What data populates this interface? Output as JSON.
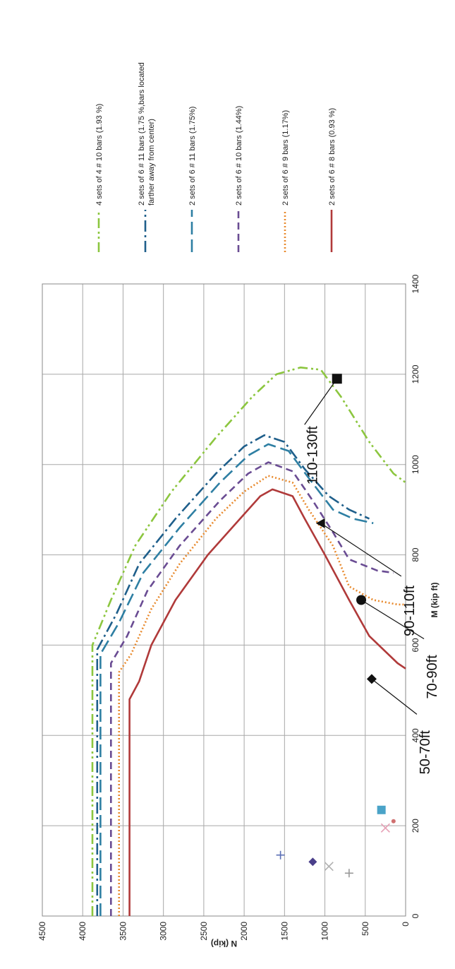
{
  "chart_data": {
    "type": "line",
    "title": "",
    "xlabel": "M (kip ft)",
    "ylabel": "N (kip)",
    "xlim": [
      0,
      1400
    ],
    "ylim": [
      0,
      4500
    ],
    "x_ticks": [
      "0",
      "200",
      "400",
      "600",
      "800",
      "1000",
      "1200",
      "1400"
    ],
    "y_ticks": [
      "0",
      "500",
      "1000",
      "1500",
      "2000",
      "2500",
      "3000",
      "3500",
      "4000",
      "4500"
    ],
    "grid": true,
    "rotation": "page rotated 90 degrees counter-clockwise",
    "series": [
      {
        "name": "2 sets of 6 # 8 bars (0.93 %)",
        "color": "#b03a3a",
        "dash": "solid",
        "points": [
          [
            0,
            3420
          ],
          [
            480,
            3420
          ],
          [
            520,
            3300
          ],
          [
            600,
            3150
          ],
          [
            700,
            2850
          ],
          [
            800,
            2450
          ],
          [
            880,
            2050
          ],
          [
            930,
            1800
          ],
          [
            945,
            1650
          ],
          [
            930,
            1400
          ],
          [
            880,
            1250
          ],
          [
            800,
            1000
          ],
          [
            700,
            700
          ],
          [
            620,
            450
          ],
          [
            560,
            100
          ],
          [
            548,
            0
          ]
        ]
      },
      {
        "name": "2 sets of 6 # 9 bars (1.17%)",
        "color": "#e8892c",
        "dash": "dotted",
        "points": [
          [
            0,
            3550
          ],
          [
            540,
            3550
          ],
          [
            580,
            3400
          ],
          [
            680,
            3150
          ],
          [
            780,
            2800
          ],
          [
            880,
            2350
          ],
          [
            940,
            2000
          ],
          [
            975,
            1700
          ],
          [
            960,
            1400
          ],
          [
            900,
            1200
          ],
          [
            820,
            900
          ],
          [
            730,
            700
          ],
          [
            700,
            400
          ],
          [
            690,
            100
          ],
          [
            690,
            0
          ]
        ]
      },
      {
        "name": "2 sets of 6 # 10 bars (1.44%)",
        "color": "#6a4c93",
        "dash": "dashed",
        "points": [
          [
            0,
            3650
          ],
          [
            560,
            3650
          ],
          [
            620,
            3450
          ],
          [
            720,
            3200
          ],
          [
            820,
            2800
          ],
          [
            920,
            2300
          ],
          [
            980,
            1950
          ],
          [
            1005,
            1700
          ],
          [
            985,
            1400
          ],
          [
            920,
            1150
          ],
          [
            850,
            900
          ],
          [
            790,
            700
          ],
          [
            765,
            350
          ],
          [
            760,
            150
          ]
        ]
      },
      {
        "name": "2 sets of 6 # 11 bars (1.75%)",
        "color": "#2e7fa3",
        "dash": "longdash",
        "points": [
          [
            0,
            3780
          ],
          [
            580,
            3780
          ],
          [
            650,
            3550
          ],
          [
            760,
            3250
          ],
          [
            860,
            2800
          ],
          [
            960,
            2300
          ],
          [
            1020,
            1950
          ],
          [
            1045,
            1700
          ],
          [
            1030,
            1450
          ],
          [
            970,
            1200
          ],
          [
            900,
            900
          ],
          [
            880,
            650
          ],
          [
            870,
            400
          ]
        ]
      },
      {
        "name": "2 sets of 6 # 11 bars (1.75 %,bars located farther away from center)",
        "color": "#1f5f8b",
        "dash": "dashdot",
        "points": [
          [
            0,
            3820
          ],
          [
            590,
            3820
          ],
          [
            670,
            3580
          ],
          [
            780,
            3300
          ],
          [
            880,
            2850
          ],
          [
            980,
            2350
          ],
          [
            1040,
            2000
          ],
          [
            1065,
            1750
          ],
          [
            1050,
            1500
          ],
          [
            990,
            1250
          ],
          [
            930,
            950
          ],
          [
            900,
            700
          ],
          [
            880,
            450
          ]
        ]
      },
      {
        "name": "4 sets of  4 # 10 bars (1.93 %)",
        "color": "#8cc63f",
        "dash": "dashdotdot",
        "points": [
          [
            0,
            3880
          ],
          [
            600,
            3880
          ],
          [
            700,
            3650
          ],
          [
            820,
            3350
          ],
          [
            940,
            2900
          ],
          [
            1060,
            2350
          ],
          [
            1150,
            1900
          ],
          [
            1200,
            1600
          ],
          [
            1215,
            1300
          ],
          [
            1210,
            1050
          ],
          [
            1150,
            800
          ],
          [
            1050,
            450
          ],
          [
            980,
            150
          ],
          [
            960,
            0
          ]
        ]
      }
    ],
    "markers": [
      {
        "label": "50-70ft",
        "m": 525,
        "n": 420,
        "shape": "diamond",
        "color": "#111111"
      },
      {
        "label": "70-90ft",
        "m": 700,
        "n": 550,
        "shape": "circle",
        "color": "#111111"
      },
      {
        "label": "90-110ft",
        "m": 870,
        "n": 1050,
        "shape": "triangle",
        "color": "#111111"
      },
      {
        "label": "110-130ft",
        "m": 1190,
        "n": 850,
        "shape": "square",
        "color": "#111111"
      }
    ],
    "scatter_points": [
      {
        "m": 135,
        "n": 1550,
        "shape": "plus",
        "color": "#5b6fb5"
      },
      {
        "m": 120,
        "n": 1150,
        "shape": "diamond",
        "color": "#4a3f8a"
      },
      {
        "m": 110,
        "n": 950,
        "shape": "x",
        "color": "#b0b0b0"
      },
      {
        "m": 95,
        "n": 700,
        "shape": "plus",
        "color": "#999999"
      },
      {
        "m": 235,
        "n": 300,
        "shape": "square",
        "color": "#4aa3c8"
      },
      {
        "m": 195,
        "n": 250,
        "shape": "x",
        "color": "#e6a0b5"
      },
      {
        "m": 210,
        "n": 150,
        "shape": "dot",
        "color": "#d07070"
      }
    ]
  }
}
